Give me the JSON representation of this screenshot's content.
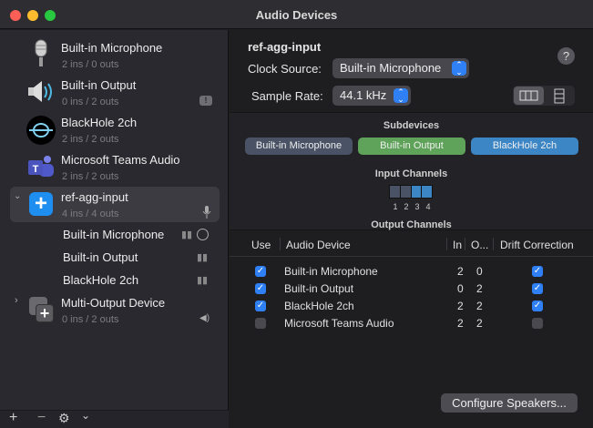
{
  "window": {
    "title": "Audio Devices"
  },
  "sidebar": {
    "devices": [
      {
        "name": "Built-in Microphone",
        "channels": "2 ins / 0 outs",
        "icon": "microphone-icon"
      },
      {
        "name": "Built-in Output",
        "channels": "0 ins / 2 outs",
        "icon": "speaker-icon",
        "badge": "alert-bubble-icon"
      },
      {
        "name": "BlackHole 2ch",
        "channels": "2 ins / 2 outs",
        "icon": "blackhole-icon"
      },
      {
        "name": "Microsoft Teams Audio",
        "channels": "2 ins / 2 outs",
        "icon": "teams-icon"
      },
      {
        "name": "ref-agg-input",
        "channels": "4 ins / 4 outs",
        "icon": "aggregate-icon",
        "selected": true,
        "expanded": true,
        "badge": "microphone-icon",
        "subdevices": [
          {
            "name": "Built-in Microphone",
            "badges": [
              "waveform-icon",
              "clock-icon"
            ]
          },
          {
            "name": "Built-in Output",
            "badges": [
              "waveform-icon"
            ]
          },
          {
            "name": "BlackHole 2ch",
            "badges": [
              "waveform-icon"
            ]
          }
        ]
      },
      {
        "name": "Multi-Output Device",
        "channels": "0 ins / 2 outs",
        "icon": "multi-output-icon",
        "expanded": false,
        "badge": "speaker-icon"
      }
    ],
    "toolbar": {
      "add": "+",
      "remove": "−",
      "settings": "gear-icon",
      "menu": "chevron-down-icon"
    }
  },
  "main": {
    "device_name": "ref-agg-input",
    "clock_source_label": "Clock Source:",
    "clock_source_value": "Built-in Microphone",
    "sample_rate_label": "Sample Rate:",
    "sample_rate_value": "44.1 kHz",
    "help": "?",
    "subdevices_title": "Subdevices",
    "subdevices": [
      {
        "name": "Built-in Microphone",
        "color": "#4a5366"
      },
      {
        "name": "Built-in Output",
        "color": "#5fa35a"
      },
      {
        "name": "BlackHole 2ch",
        "color": "#3d86c6"
      }
    ],
    "input_channels_title": "Input Channels",
    "input_channels": [
      {
        "n": "1",
        "color": "#4a5366"
      },
      {
        "n": "2",
        "color": "#4a5366"
      },
      {
        "n": "3",
        "color": "#3d86c6"
      },
      {
        "n": "4",
        "color": "#3d86c6"
      }
    ],
    "output_channels_title": "Output Channels",
    "table": {
      "headers": [
        "Use",
        "Audio Device",
        "In",
        "O...",
        "Drift Correction"
      ],
      "rows": [
        {
          "use": true,
          "device": "Built-in Microphone",
          "in": "2",
          "out": "0",
          "drift": true
        },
        {
          "use": true,
          "device": "Built-in Output",
          "in": "0",
          "out": "2",
          "drift": true
        },
        {
          "use": true,
          "device": "BlackHole 2ch",
          "in": "2",
          "out": "2",
          "drift": true
        },
        {
          "use": false,
          "device": "Microsoft Teams Audio",
          "in": "2",
          "out": "2",
          "drift": false
        }
      ]
    },
    "configure_speakers": "Configure Speakers..."
  }
}
